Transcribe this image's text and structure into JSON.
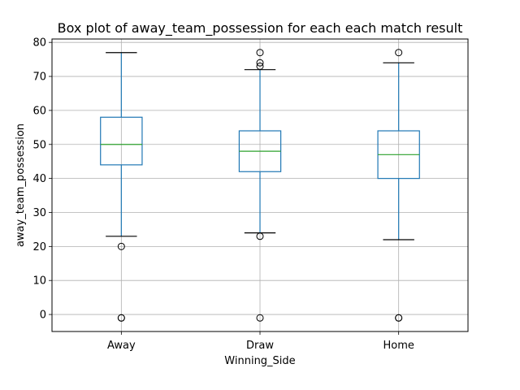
{
  "chart_data": {
    "type": "box",
    "title": "Box plot of away_team_possession for each each match result",
    "xlabel": "Winning_Side",
    "ylabel": "away_team_possession",
    "ylim": [
      -5,
      81
    ],
    "yticks": [
      "0",
      "10",
      "20",
      "30",
      "40",
      "50",
      "60",
      "70",
      "80"
    ],
    "grid": true,
    "categories": [
      "Away",
      "Draw",
      "Home"
    ],
    "boxes": [
      {
        "category": "Away",
        "whisker_low": 23,
        "q1": 44,
        "median": 50,
        "q3": 58,
        "whisker_high": 77,
        "outliers": [
          20,
          -1,
          -1
        ]
      },
      {
        "category": "Draw",
        "whisker_low": 24,
        "q1": 42,
        "median": 48,
        "q3": 54,
        "whisker_high": 72,
        "outliers": [
          23,
          -1,
          73,
          74,
          77
        ]
      },
      {
        "category": "Home",
        "whisker_low": 22,
        "q1": 40,
        "median": 47,
        "q3": 54,
        "whisker_high": 74,
        "outliers": [
          -1,
          -1,
          77
        ]
      }
    ],
    "colors": {
      "box": "#1f77b4",
      "median": "#2ca02c",
      "cap": "#000000",
      "grid": "#b0b0b0",
      "outlier": "#000000"
    }
  }
}
